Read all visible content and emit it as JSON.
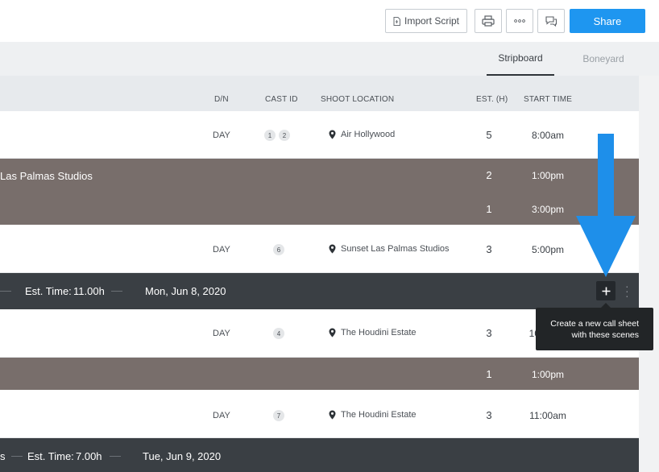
{
  "toolbar": {
    "import_label": "Import Script",
    "share_label": "Share",
    "print_icon": "printer-icon",
    "more_icon": "more-dots-icon",
    "comments_icon": "comments-icon"
  },
  "tabs": {
    "stripboard": "Stripboard",
    "boneyard": "Boneyard"
  },
  "columns": {
    "dn": "D/N",
    "cast_id": "CAST ID",
    "location": "SHOOT LOCATION",
    "est": "EST. (H)",
    "start": "START TIME"
  },
  "rows": [
    {
      "dn": "DAY",
      "cast": [
        "1",
        "2"
      ],
      "location": "Air Hollywood",
      "est": "5",
      "start": "8:00am"
    },
    {
      "label": "Las Palmas Studios",
      "est": "2",
      "start": "1:00pm"
    },
    {
      "est": "1",
      "start": "3:00pm"
    },
    {
      "dn": "DAY",
      "cast": [
        "6"
      ],
      "location": "Sunset Las Palmas Studios",
      "est": "3",
      "start": "5:00pm"
    },
    {
      "dn": "DAY",
      "cast": [
        "4"
      ],
      "location": "The Houdini Estate",
      "est": "3",
      "start": "10:00am"
    },
    {
      "est": "1",
      "start": "1:00pm"
    },
    {
      "dn": "DAY",
      "cast": [
        "7"
      ],
      "location": "The Houdini Estate",
      "est": "3",
      "start": "11:00am"
    }
  ],
  "day_breaks": [
    {
      "est_label": "Est. Time:",
      "est_value": "11.00h",
      "date": "Mon, Jun 8, 2020"
    },
    {
      "prefix": "s",
      "est_label": "Est. Time:",
      "est_value": "7.00h",
      "date": "Tue, Jun 9, 2020"
    }
  ],
  "tooltip": {
    "line1": "Create a new call sheet",
    "line2": "with these scenes"
  },
  "colors": {
    "accent": "#1e96f0",
    "banner": "#786e6b",
    "day_break": "#3a3f44",
    "annotation_arrow": "#1e8fea"
  }
}
